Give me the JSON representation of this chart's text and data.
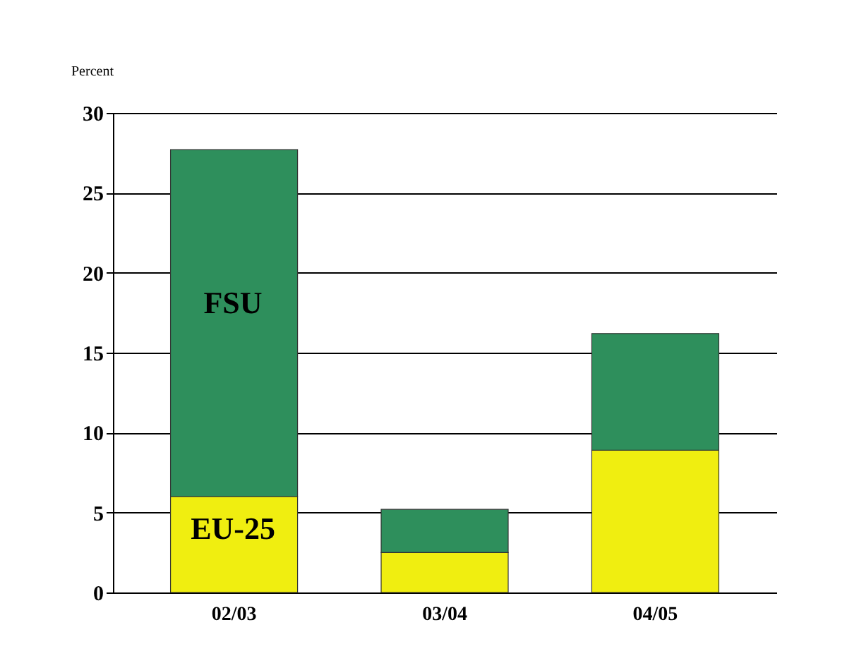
{
  "chart_data": {
    "type": "bar",
    "stacked": true,
    "ylabel": "Percent",
    "categories": [
      "02/03",
      "03/04",
      "04/05"
    ],
    "series": [
      {
        "name": "EU-25",
        "color": "#f0ee10",
        "values": [
          6.0,
          2.5,
          8.9
        ]
      },
      {
        "name": "FSU",
        "color": "#2e8f5c",
        "values": [
          21.7,
          2.7,
          7.3
        ]
      }
    ],
    "ylim": [
      0,
      30
    ],
    "yticks": [
      0,
      5,
      10,
      15,
      20,
      25,
      30
    ],
    "grid": "y",
    "legend": false
  }
}
